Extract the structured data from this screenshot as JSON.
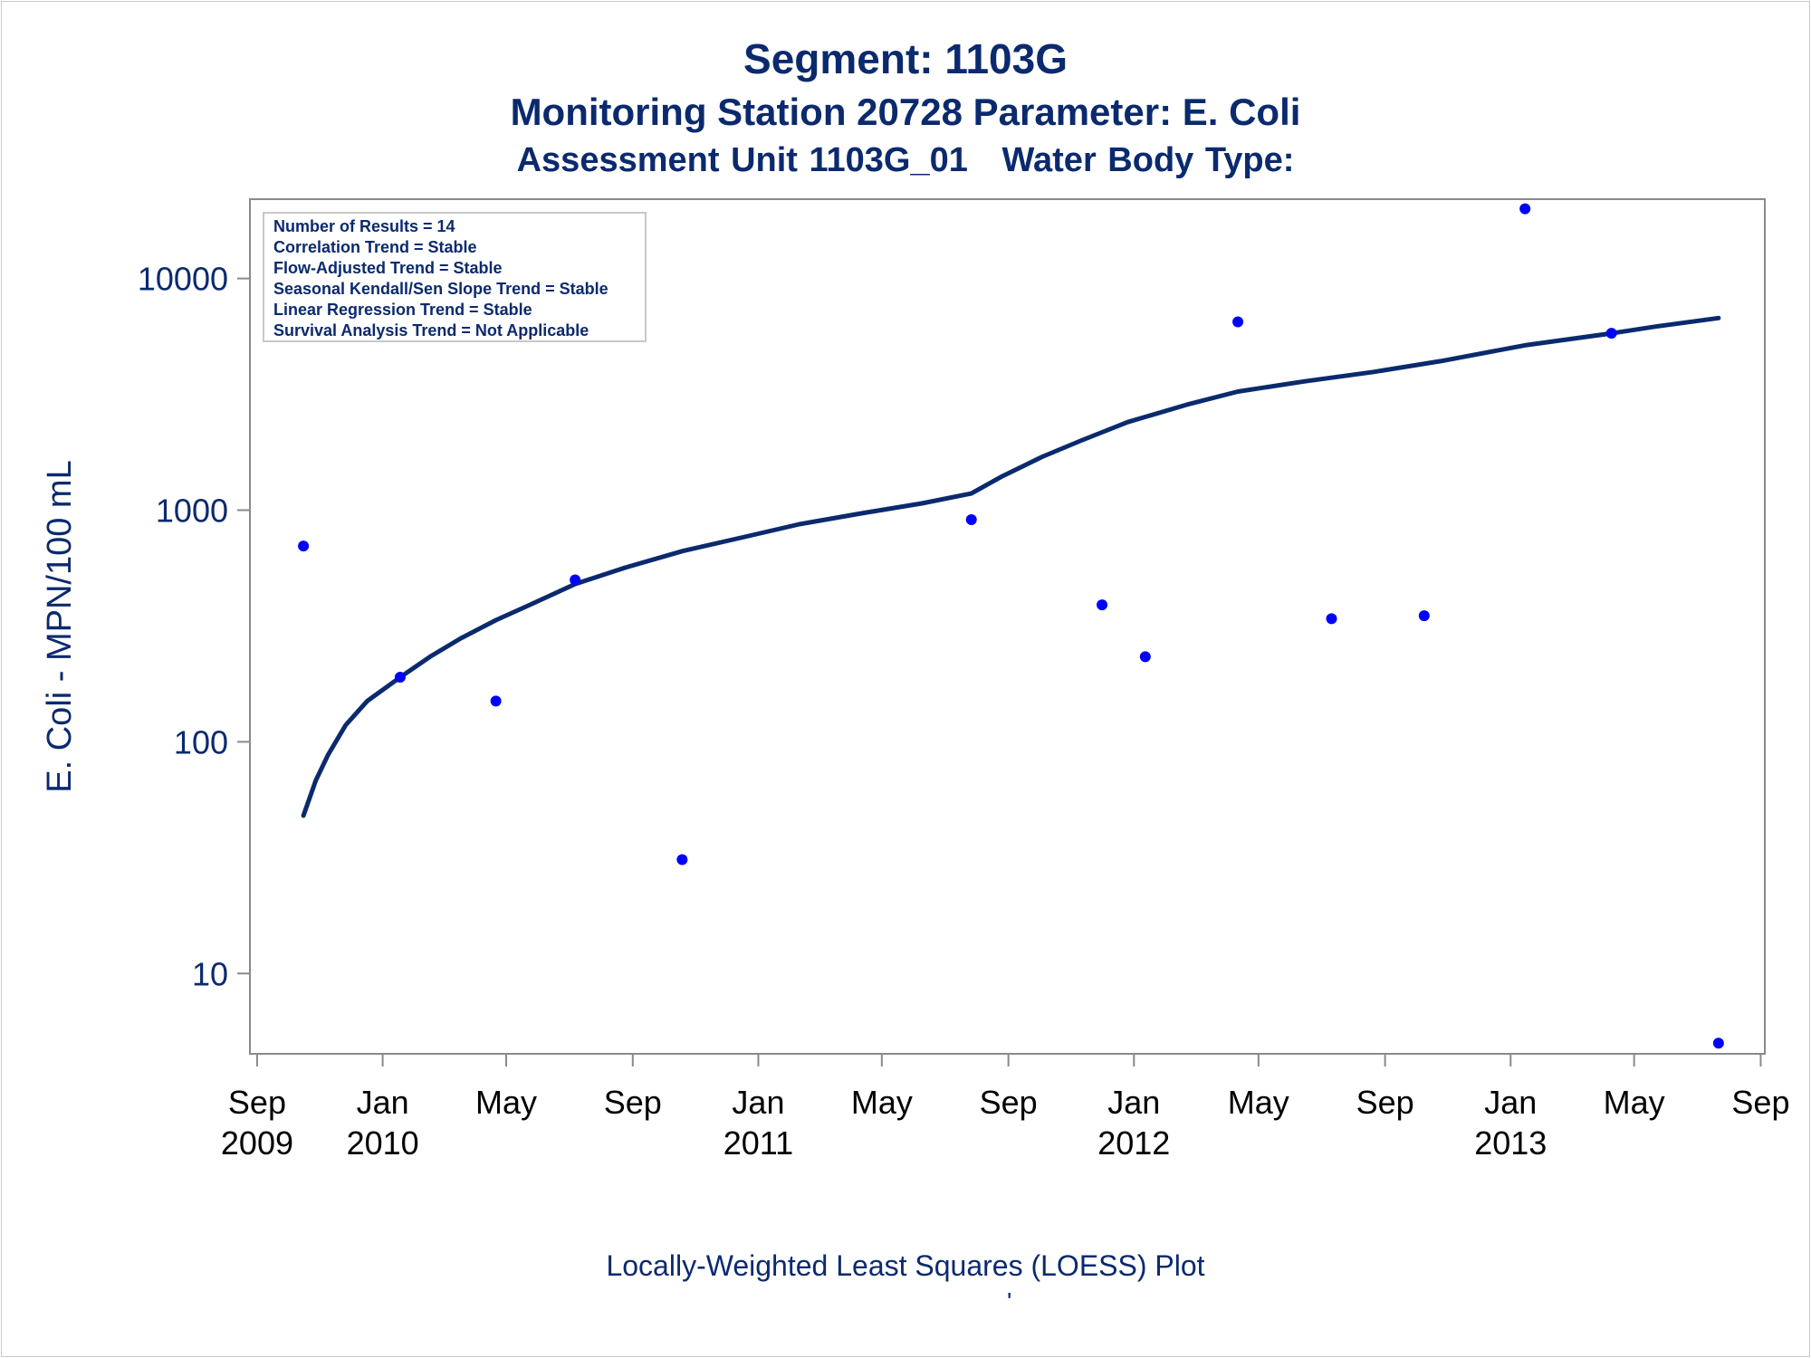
{
  "titles": {
    "line1": "Segment: 1103G",
    "line2": "Monitoring Station 20728 Parameter: E. Coli",
    "line3": "Assessment Unit 1103G_01   Water Body Type:"
  },
  "footnote": "Locally-Weighted Least Squares (LOESS) Plot",
  "footmark": "'",
  "colors": {
    "text": "#0b2a6e",
    "points": "#0000ff",
    "loess_line": "#0b2a6e",
    "axis": "#8a8a8a"
  },
  "chart_data": {
    "type": "scatter",
    "title": "Segment: 1103G",
    "ylabel": "E. Coli - MPN/100 mL",
    "xlabel": "",
    "yscale": "log",
    "ylim": [
      4.5,
      22000
    ],
    "xlim": [
      "2009-08-25",
      "2013-09-05"
    ],
    "yticks": [
      10,
      100,
      1000,
      10000
    ],
    "xticks": [
      {
        "date": "2009-09-01",
        "label": [
          "Sep",
          "2009"
        ]
      },
      {
        "date": "2010-01-01",
        "label": [
          "Jan",
          "2010"
        ]
      },
      {
        "date": "2010-05-01",
        "label": [
          "May",
          ""
        ]
      },
      {
        "date": "2010-09-01",
        "label": [
          "Sep",
          ""
        ]
      },
      {
        "date": "2011-01-01",
        "label": [
          "Jan",
          "2011"
        ]
      },
      {
        "date": "2011-05-01",
        "label": [
          "May",
          ""
        ]
      },
      {
        "date": "2011-09-01",
        "label": [
          "Sep",
          ""
        ]
      },
      {
        "date": "2012-01-01",
        "label": [
          "Jan",
          "2012"
        ]
      },
      {
        "date": "2012-05-01",
        "label": [
          "May",
          ""
        ]
      },
      {
        "date": "2012-09-01",
        "label": [
          "Sep",
          ""
        ]
      },
      {
        "date": "2013-01-01",
        "label": [
          "Jan",
          "2013"
        ]
      },
      {
        "date": "2013-05-01",
        "label": [
          "May",
          ""
        ]
      },
      {
        "date": "2013-09-01",
        "label": [
          "Sep",
          ""
        ]
      }
    ],
    "stats_box": [
      "Number of Results = 14",
      "Correlation Trend = Stable",
      "Flow-Adjusted Trend = Stable",
      "Seasonal Kendall/Sen Slope Trend = Stable",
      "Linear Regression Trend = Stable",
      "Survival Analysis Trend = Not Applicable"
    ],
    "legend_position": "top-left",
    "grid": false,
    "points": [
      {
        "x": "2009-10-16",
        "y": 700
      },
      {
        "x": "2010-01-18",
        "y": 190
      },
      {
        "x": "2010-04-21",
        "y": 150
      },
      {
        "x": "2010-07-07",
        "y": 500
      },
      {
        "x": "2010-10-19",
        "y": 31
      },
      {
        "x": "2011-07-27",
        "y": 910
      },
      {
        "x": "2011-12-01",
        "y": 390
      },
      {
        "x": "2012-01-12",
        "y": 233
      },
      {
        "x": "2012-04-11",
        "y": 6500
      },
      {
        "x": "2012-07-11",
        "y": 340
      },
      {
        "x": "2012-10-09",
        "y": 350
      },
      {
        "x": "2013-01-15",
        "y": 20000
      },
      {
        "x": "2013-04-09",
        "y": 5800
      },
      {
        "x": "2013-07-22",
        "y": 5
      }
    ],
    "loess": [
      {
        "x": "2009-10-16",
        "y": 48
      },
      {
        "x": "2009-10-28",
        "y": 68
      },
      {
        "x": "2009-11-09",
        "y": 88
      },
      {
        "x": "2009-11-26",
        "y": 118
      },
      {
        "x": "2009-12-17",
        "y": 150
      },
      {
        "x": "2010-01-18",
        "y": 190
      },
      {
        "x": "2010-02-16",
        "y": 233
      },
      {
        "x": "2010-03-18",
        "y": 280
      },
      {
        "x": "2010-04-21",
        "y": 335
      },
      {
        "x": "2010-05-24",
        "y": 390
      },
      {
        "x": "2010-07-07",
        "y": 480
      },
      {
        "x": "2010-08-25",
        "y": 565
      },
      {
        "x": "2010-10-19",
        "y": 665
      },
      {
        "x": "2010-12-15",
        "y": 760
      },
      {
        "x": "2011-02-10",
        "y": 870
      },
      {
        "x": "2011-04-12",
        "y": 970
      },
      {
        "x": "2011-06-09",
        "y": 1070
      },
      {
        "x": "2011-07-27",
        "y": 1180
      },
      {
        "x": "2011-08-26",
        "y": 1400
      },
      {
        "x": "2011-10-04",
        "y": 1700
      },
      {
        "x": "2011-11-11",
        "y": 2000
      },
      {
        "x": "2011-12-26",
        "y": 2400
      },
      {
        "x": "2012-02-21",
        "y": 2850
      },
      {
        "x": "2012-04-11",
        "y": 3250
      },
      {
        "x": "2012-06-15",
        "y": 3600
      },
      {
        "x": "2012-08-21",
        "y": 3950
      },
      {
        "x": "2012-10-25",
        "y": 4400
      },
      {
        "x": "2013-01-15",
        "y": 5150
      },
      {
        "x": "2013-04-09",
        "y": 5800
      },
      {
        "x": "2013-05-22",
        "y": 6200
      },
      {
        "x": "2013-07-22",
        "y": 6750
      }
    ]
  }
}
